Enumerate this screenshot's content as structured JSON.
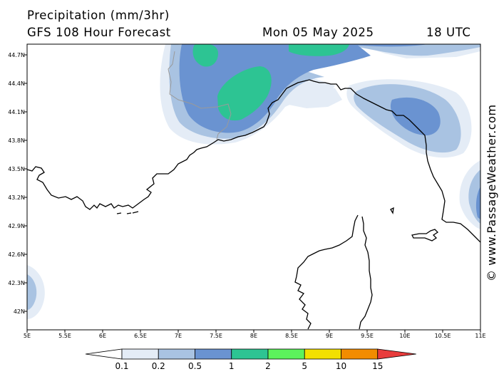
{
  "header": {
    "title": "Precipitation (mm/3hr)",
    "model_run": "GFS 108 Hour Forecast",
    "valid_date": "Mon 05 May 2025",
    "valid_time": "18 UTC"
  },
  "axes": {
    "lon_labels": [
      "5E",
      "5.5E",
      "6E",
      "6.5E",
      "7E",
      "7.5E",
      "8E",
      "8.5E",
      "9E",
      "9.5E",
      "10E",
      "10.5E",
      "11E"
    ],
    "lat_labels": [
      "44.7N",
      "44.4N",
      "44.1N",
      "43.8N",
      "43.5N",
      "43.2N",
      "42.9N",
      "42.6N",
      "42.3N",
      "42N"
    ]
  },
  "legend": {
    "levels": [
      "0.1",
      "0.2",
      "0.5",
      "1",
      "2",
      "5",
      "10",
      "15"
    ],
    "colors": [
      "#e4ecf6",
      "#a9c3e2",
      "#6a93d1",
      "#2dc493",
      "#5cf25c",
      "#f2e000",
      "#f28c00",
      "#e83c3c"
    ]
  },
  "map": {
    "coastline_color": "#000000",
    "border_color": "#9a9a9a",
    "precip_levels_shown": [
      "0.1",
      "0.2",
      "0.5",
      "1"
    ]
  },
  "watermark": "© www.PassageWeather.com"
}
